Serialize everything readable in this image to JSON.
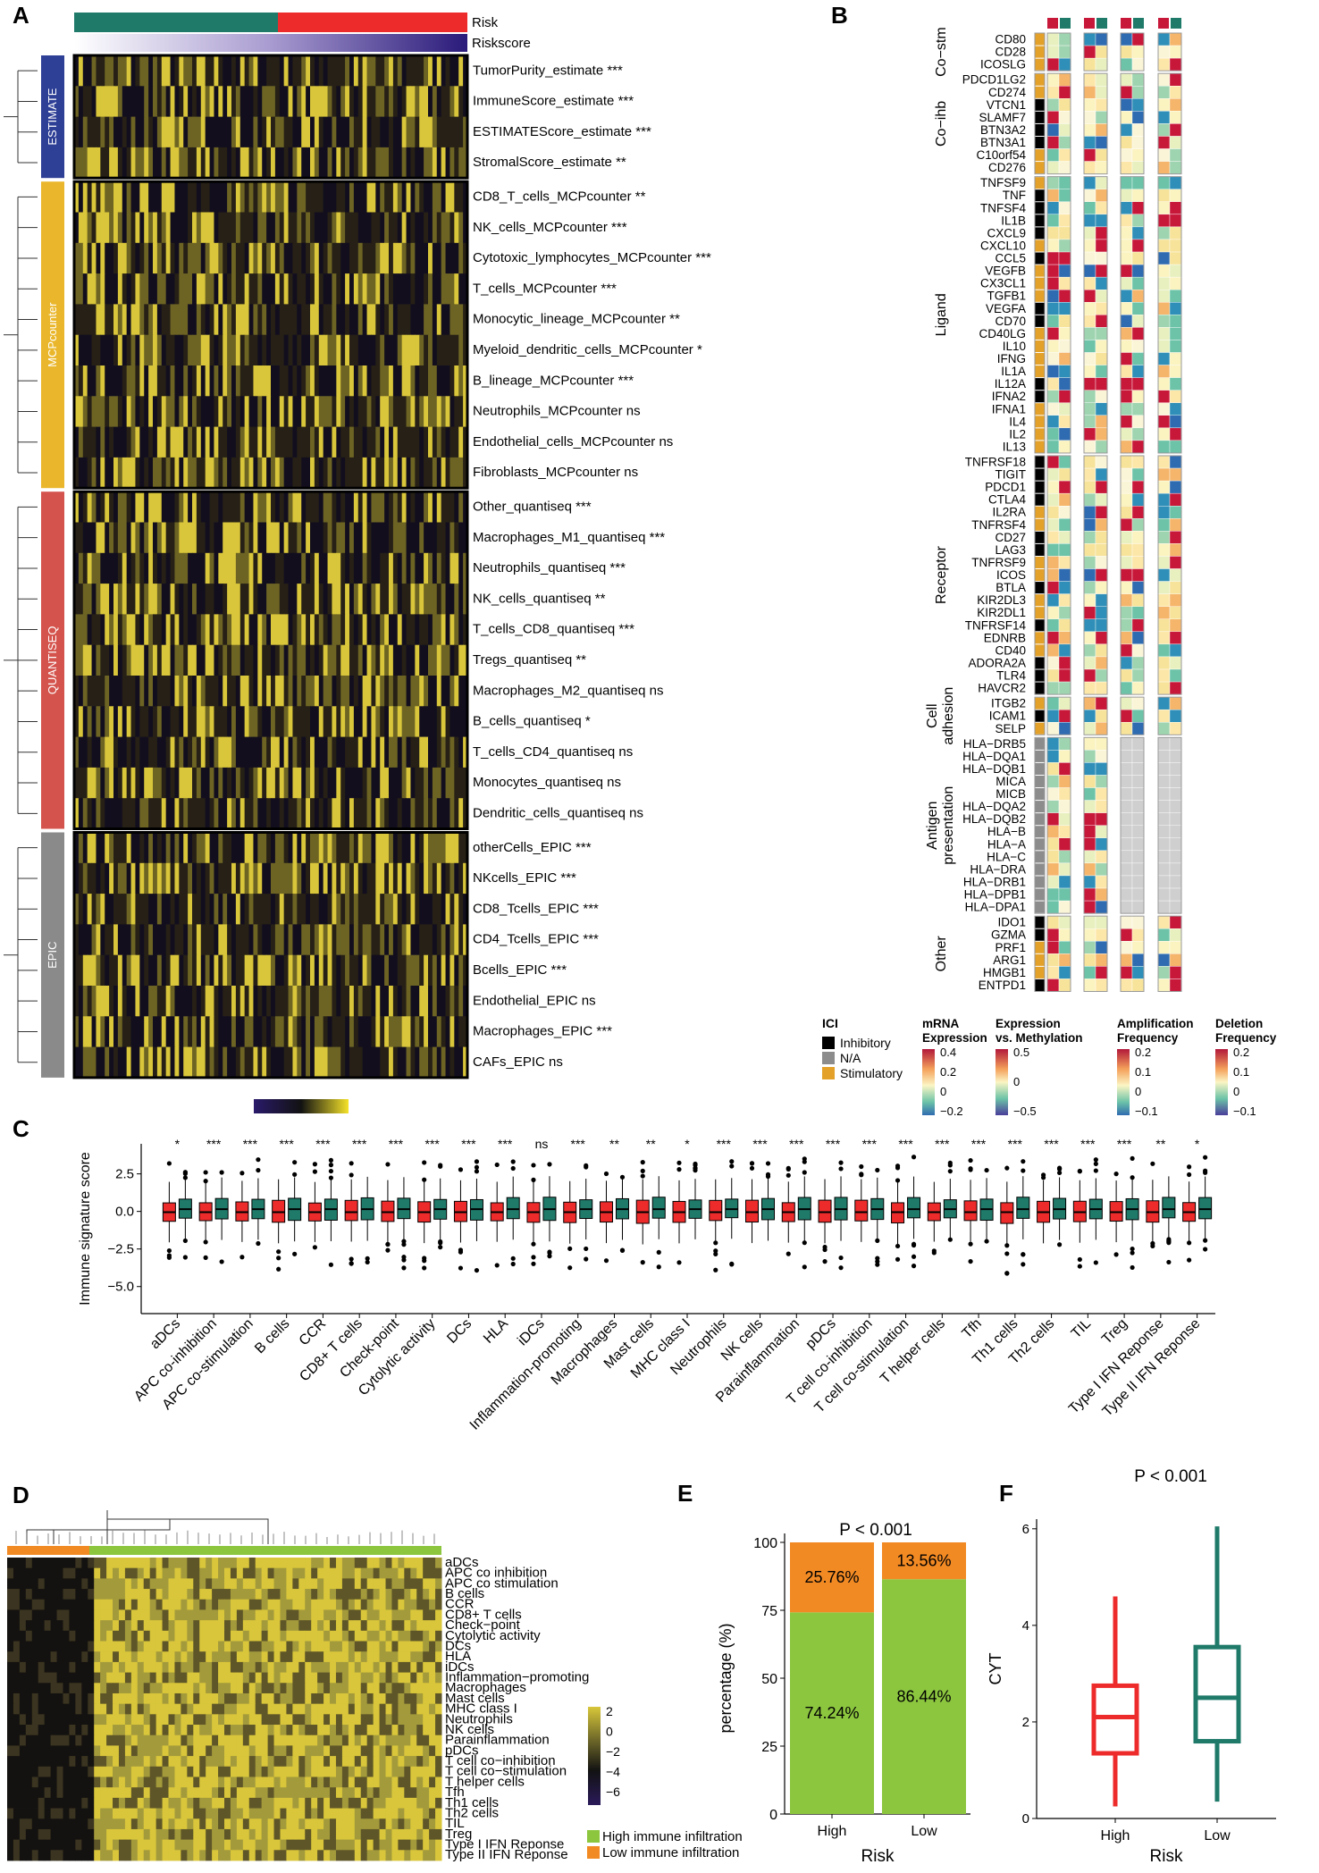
{
  "panels": [
    "A",
    "B",
    "C",
    "D",
    "E",
    "F"
  ],
  "panelA": {
    "legend": {
      "risk": "Risk",
      "riskscore": "Riskscore"
    },
    "colors": {
      "high": "#ee2b2b",
      "low": "#1f7a6a",
      "heatLow": "#1a0f3d",
      "heatMid": "#121212",
      "heatHigh": "#f4e22a"
    },
    "groups": [
      {
        "name": "ESTIMATE",
        "color": "#2e3f96",
        "rows": [
          "TumorPurity_estimate ***",
          "ImmuneScore_estimate ***",
          "ESTIMATEScore_estimate ***",
          "StromalScore_estimate **"
        ]
      },
      {
        "name": "MCPcounter",
        "color": "#eab72c",
        "rows": [
          "CD8_T_cells_MCPcounter **",
          "NK_cells_MCPcounter ***",
          "Cytotoxic_lymphocytes_MCPcounter ***",
          "T_cells_MCPcounter ***",
          "Monocytic_lineage_MCPcounter **",
          "Myeloid_dendritic_cells_MCPcounter *",
          "B_lineage_MCPcounter ***",
          "Neutrophils_MCPcounter ns",
          "Endothelial_cells_MCPcounter ns",
          "Fibroblasts_MCPcounter ns"
        ]
      },
      {
        "name": "QUANTISEQ",
        "color": "#d4534c",
        "rows": [
          "Other_quantiseq ***",
          "Macrophages_M1_quantiseq ***",
          "Neutrophils_quantiseq ***",
          "NK_cells_quantiseq **",
          "T_cells_CD8_quantiseq ***",
          "Tregs_quantiseq **",
          "Macrophages_M2_quantiseq ns",
          "B_cells_quantiseq *",
          "T_cells_CD4_quantiseq ns",
          "Monocytes_quantiseq ns",
          "Dendritic_cells_quantiseq ns"
        ]
      },
      {
        "name": "EPIC",
        "color": "#8a8a8a",
        "rows": [
          "otherCells_EPIC ***",
          "NKcells_EPIC ***",
          "CD8_Tcells_EPIC ***",
          "CD4_Tcells_EPIC ***",
          "Bcells_EPIC ***",
          "Endothelial_EPIC ns",
          "Macrophages_EPIC ***",
          "CAFs_EPIC ns"
        ]
      }
    ]
  },
  "panelB": {
    "categories": [
      {
        "name": "Co−stm",
        "genes": [
          "CD80",
          "CD28",
          "ICOSLG"
        ]
      },
      {
        "name": "Co−ihb",
        "genes": [
          "PDCD1LG2",
          "CD274",
          "VTCN1",
          "SLAMF7",
          "BTN3A2",
          "BTN3A1",
          "C10orf54",
          "CD276"
        ]
      },
      {
        "name": "Ligand",
        "genes": [
          "TNFSF9",
          "TNF",
          "TNFSF4",
          "IL1B",
          "CXCL9",
          "CXCL10",
          "CCL5",
          "VEGFB",
          "CX3CL1",
          "TGFB1",
          "VEGFA",
          "CD70",
          "CD40LG",
          "IL10",
          "IFNG",
          "IL1A",
          "IL12A",
          "IFNA2",
          "IFNA1",
          "IL4",
          "IL2",
          "IL13"
        ]
      },
      {
        "name": "Receptor",
        "genes": [
          "TNFRSF18",
          "TIGIT",
          "PDCD1",
          "CTLA4",
          "IL2RA",
          "TNFRSF4",
          "CD27",
          "LAG3",
          "TNFRSF9",
          "ICOS",
          "BTLA",
          "KIR2DL3",
          "KIR2DL1",
          "TNFRSF14",
          "EDNRB",
          "CD40",
          "ADORA2A",
          "TLR4",
          "HAVCR2"
        ]
      },
      {
        "name": "Cell adhesion",
        "genes": [
          "ITGB2",
          "ICAM1",
          "SELP"
        ]
      },
      {
        "name": "Antigen presentation",
        "genes": [
          "HLA−DRB5",
          "HLA−DQA1",
          "HLA−DQB1",
          "MICA",
          "MICB",
          "HLA−DQA2",
          "HLA−DQB2",
          "HLA−B",
          "HLA−A",
          "HLA−C",
          "HLA−DRA",
          "HLA−DRB1",
          "HLA−DPB1",
          "HLA−DPA1"
        ]
      },
      {
        "name": "Other",
        "genes": [
          "IDO1",
          "GZMA",
          "PRF1",
          "ARG1",
          "HMGB1",
          "ENTPD1"
        ]
      }
    ],
    "legend": {
      "ici_title": "ICI",
      "ici_items": [
        {
          "label": "Inhibitory",
          "color": "#000000"
        },
        {
          "label": "N/A",
          "color": "#8c8c8c"
        },
        {
          "label": "Stimulatory",
          "color": "#e3a12a"
        }
      ],
      "mrna": {
        "title1": "mRNA",
        "title2": "Expression",
        "ticks": [
          "0.4",
          "0.2",
          "0",
          "−0.2"
        ]
      },
      "meth": {
        "title1": "Expression",
        "title2": "vs. Methylation",
        "ticks": [
          "0.5",
          "0",
          "−0.5"
        ]
      },
      "amp": {
        "title1": "Amplification",
        "title2": "Frequency",
        "ticks": [
          "0.2",
          "0.1",
          "0",
          "−0.1"
        ]
      },
      "del": {
        "title1": "Deletion",
        "title2": "Frequency",
        "ticks": [
          "0.2",
          "0.1",
          "0",
          "−0.1"
        ]
      }
    }
  },
  "panelC": {
    "ylabel": "Immune signature score",
    "yticks": [
      "2.5",
      "0.0",
      "−2.5",
      "−5.0"
    ],
    "categories": [
      "aDCs",
      "APC co-inhibition",
      "APC co-stimulation",
      "B cells",
      "CCR",
      "CD8+ T cells",
      "Check-point",
      "Cytolytic activity",
      "DCs",
      "HLA",
      "iDCs",
      "Inflammation-promoting",
      "Macrophages",
      "Mast cells",
      "MHC class I",
      "Neutrophils",
      "NK cells",
      "Parainflammation",
      "pDCs",
      "T cell co-inhibition",
      "T cell co-stimulation",
      "T helper cells",
      "Tfh",
      "Th1 cells",
      "Th2 cells",
      "TIL",
      "Treg",
      "Type I IFN Reponse",
      "Type II IFN Reponse"
    ],
    "significance": [
      "*",
      "***",
      "***",
      "***",
      "***",
      "***",
      "***",
      "***",
      "***",
      "***",
      "ns",
      "***",
      "**",
      "**",
      "*",
      "***",
      "***",
      "***",
      "***",
      "***",
      "***",
      "***",
      "***",
      "***",
      "***",
      "***",
      "***",
      "**",
      "*"
    ]
  },
  "panelD": {
    "rows": [
      "aDCs",
      "APC co inhibition",
      "APC co stimulation",
      "B cells",
      "CCR",
      "CD8+ T cells",
      "Check−point",
      "Cytolytic activity",
      "DCs",
      "HLA",
      "iDCs",
      "Inflammation−promoting",
      "Macrophages",
      "Mast cells",
      "MHC class I",
      "Neutrophils",
      "NK cells",
      "Parainflammation",
      "pDCs",
      "T cell co−inhibition",
      "T cell co−stimulation",
      "T helper cells",
      "Tfh",
      "Th1 cells",
      "Th2 cells",
      "TIL",
      "Treg",
      "Type I IFN Reponse",
      "Type II IFN Reponse"
    ],
    "scale_ticks": [
      "2",
      "0",
      "−2",
      "−4",
      "−6"
    ],
    "legend": [
      {
        "label": "High immune infiltration",
        "color": "#8cc63f"
      },
      {
        "label": "Low immune infiltration",
        "color": "#f28a24"
      }
    ]
  },
  "chart_data": [
    {
      "type": "bar",
      "title": "P < 0.001",
      "xlabel": "Risk",
      "ylabel": "percentage (%)",
      "categories": [
        "High",
        "Low"
      ],
      "series": [
        {
          "name": "High immune infiltration",
          "values": [
            74.24,
            86.44
          ],
          "labels": [
            "74.24%",
            "86.44%"
          ],
          "color": "#8cc63f"
        },
        {
          "name": "Low immune infiltration",
          "values": [
            25.76,
            13.56
          ],
          "labels": [
            "25.76%",
            "13.56%"
          ],
          "color": "#f28a24"
        }
      ],
      "ylim": [
        0,
        100
      ],
      "yticks": [
        "0",
        "25",
        "50",
        "75",
        "100"
      ]
    },
    {
      "type": "box",
      "title": "P < 0.001",
      "xlabel": "Risk",
      "ylabel": "CYT",
      "categories": [
        "High",
        "Low"
      ],
      "boxes": [
        {
          "name": "High",
          "min": 0.25,
          "q1": 1.35,
          "median": 2.1,
          "q3": 2.75,
          "max": 4.6,
          "color": "#ee2b2b"
        },
        {
          "name": "Low",
          "min": 0.35,
          "q1": 1.6,
          "median": 2.5,
          "q3": 3.55,
          "max": 6.05,
          "color": "#1f7a6a"
        }
      ],
      "ylim": [
        0,
        6.2
      ],
      "yticks": [
        "0",
        "2",
        "4",
        "6"
      ]
    }
  ]
}
